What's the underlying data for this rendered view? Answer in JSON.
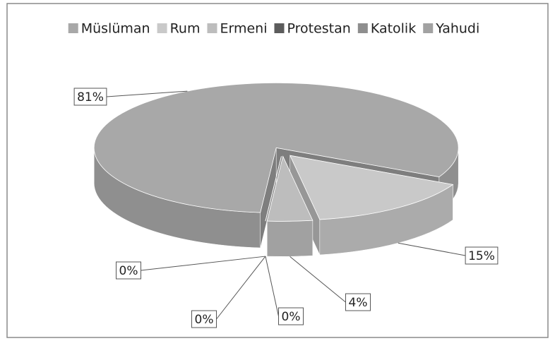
{
  "chart_data": {
    "type": "pie",
    "categories": [
      "Müslüman",
      "Rum",
      "Ermeni",
      "Protestan",
      "Katolik",
      "Yahudi"
    ],
    "values": [
      81,
      15,
      4,
      0,
      0,
      0
    ],
    "value_labels": [
      "81%",
      "15%",
      "4%",
      "0%",
      "0%",
      "0%"
    ],
    "colors": [
      "#a8a8a8",
      "#c9c9c9",
      "#bdbdbd",
      "#5c5c5c",
      "#8e8e8e",
      "#a2a2a2"
    ],
    "legend": "top"
  }
}
